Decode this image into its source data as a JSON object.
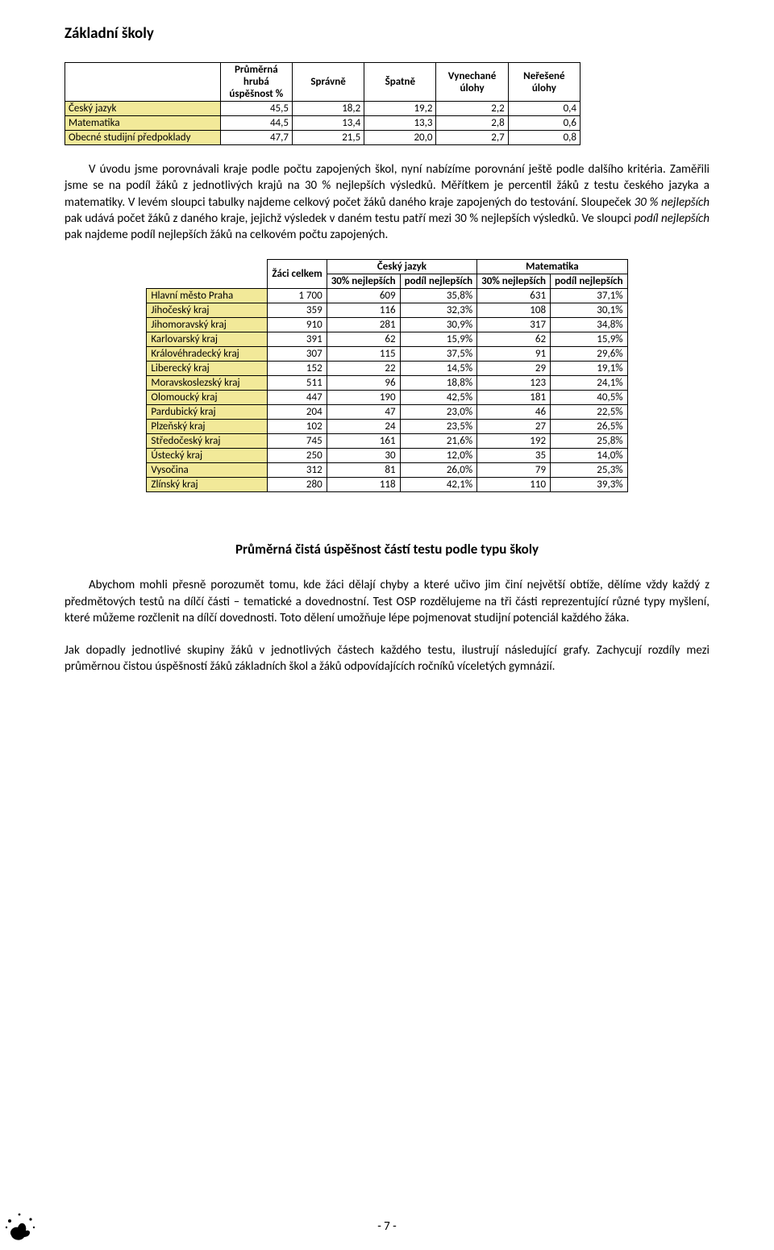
{
  "title": "Základní školy",
  "table1": {
    "columns": [
      "Průměrná hrubá úspěšnost %",
      "Správně",
      "Špatně",
      "Vynechané úlohy",
      "Neřešené úlohy"
    ],
    "rows": [
      {
        "label": "Český jazyk",
        "vals": [
          "45,5",
          "18,2",
          "19,2",
          "2,2",
          "0,4"
        ]
      },
      {
        "label": "Matematika",
        "vals": [
          "44,5",
          "13,4",
          "13,3",
          "2,8",
          "0,6"
        ]
      },
      {
        "label": "Obecné studijní předpoklady",
        "vals": [
          "47,7",
          "21,5",
          "20,0",
          "2,7",
          "0,8"
        ]
      }
    ]
  },
  "para1_a": "V úvodu jsme porovnávali kraje podle počtu zapojených škol, nyní nabízíme porovnání ještě podle dalšího kritéria. Zaměřili jsme se na podíl žáků z jednotlivých krajů na 30 % nejlepších výsledků. Měřítkem je percentil žáků z testu českého jazyka a matematiky. V levém sloupci tabulky najdeme celkový počet žáků daného kraje zapojených do testování. Sloupeček ",
  "para1_i1": "30 % nejlepších",
  "para1_b": " pak udává počet žáků z daného kraje, jejichž výsledek v daném testu patří mezi 30 % nejlepších výsledků. Ve sloupci ",
  "para1_i2": "podíl nejlepších",
  "para1_c": " pak najdeme podíl nejlepších žáků na celkovém počtu zapojených.",
  "table2": {
    "head_zaci": "Žáci celkem",
    "head_cj": "Český jazyk",
    "head_mat": "Matematika",
    "sub_30": "30% nejlepších",
    "sub_podil": "podíl nejlepších",
    "rows": [
      {
        "k": "Hlavní město Praha",
        "z": "1 700",
        "c30": "609",
        "cp": "35,8%",
        "m30": "631",
        "mp": "37,1%"
      },
      {
        "k": "Jihočeský kraj",
        "z": "359",
        "c30": "116",
        "cp": "32,3%",
        "m30": "108",
        "mp": "30,1%"
      },
      {
        "k": "Jihomoravský kraj",
        "z": "910",
        "c30": "281",
        "cp": "30,9%",
        "m30": "317",
        "mp": "34,8%"
      },
      {
        "k": "Karlovarský kraj",
        "z": "391",
        "c30": "62",
        "cp": "15,9%",
        "m30": "62",
        "mp": "15,9%"
      },
      {
        "k": "Královéhradecký kraj",
        "z": "307",
        "c30": "115",
        "cp": "37,5%",
        "m30": "91",
        "mp": "29,6%"
      },
      {
        "k": "Liberecký kraj",
        "z": "152",
        "c30": "22",
        "cp": "14,5%",
        "m30": "29",
        "mp": "19,1%"
      },
      {
        "k": "Moravskoslezský kraj",
        "z": "511",
        "c30": "96",
        "cp": "18,8%",
        "m30": "123",
        "mp": "24,1%"
      },
      {
        "k": "Olomoucký kraj",
        "z": "447",
        "c30": "190",
        "cp": "42,5%",
        "m30": "181",
        "mp": "40,5%"
      },
      {
        "k": "Pardubický kraj",
        "z": "204",
        "c30": "47",
        "cp": "23,0%",
        "m30": "46",
        "mp": "22,5%"
      },
      {
        "k": "Plzeňský kraj",
        "z": "102",
        "c30": "24",
        "cp": "23,5%",
        "m30": "27",
        "mp": "26,5%"
      },
      {
        "k": "Středočeský kraj",
        "z": "745",
        "c30": "161",
        "cp": "21,6%",
        "m30": "192",
        "mp": "25,8%"
      },
      {
        "k": "Ústecký kraj",
        "z": "250",
        "c30": "30",
        "cp": "12,0%",
        "m30": "35",
        "mp": "14,0%"
      },
      {
        "k": "Vysočina",
        "z": "312",
        "c30": "81",
        "cp": "26,0%",
        "m30": "79",
        "mp": "25,3%"
      },
      {
        "k": "Zlínský kraj",
        "z": "280",
        "c30": "118",
        "cp": "42,1%",
        "m30": "110",
        "mp": "39,3%"
      }
    ]
  },
  "subhead": "Průměrná čistá úspěšnost částí testu podle typu školy",
  "para2": "Abychom mohli přesně porozumět tomu, kde žáci dělají chyby a které učivo jim činí největší obtíže, dělíme vždy každý z předmětových testů na dílčí části – tematické a dovednostní. Test OSP rozdělujeme na tři části reprezentující různé typy myšlení, které můžeme rozčlenit na dílčí dovednosti. Toto dělení umožňuje lépe pojmenovat studijní potenciál každého žáka.",
  "para3": "Jak dopadly jednotlivé skupiny žáků v jednotlivých částech každého testu, ilustrují následující grafy. Zachycují rozdíly mezi průměrnou čistou úspěšností žáků základních škol a žáků odpovídajících ročníků víceletých gymnázií.",
  "page_num": "- 7 -",
  "colors": {
    "row_highlight": "#f2e999",
    "border": "#000000",
    "text": "#000000"
  }
}
